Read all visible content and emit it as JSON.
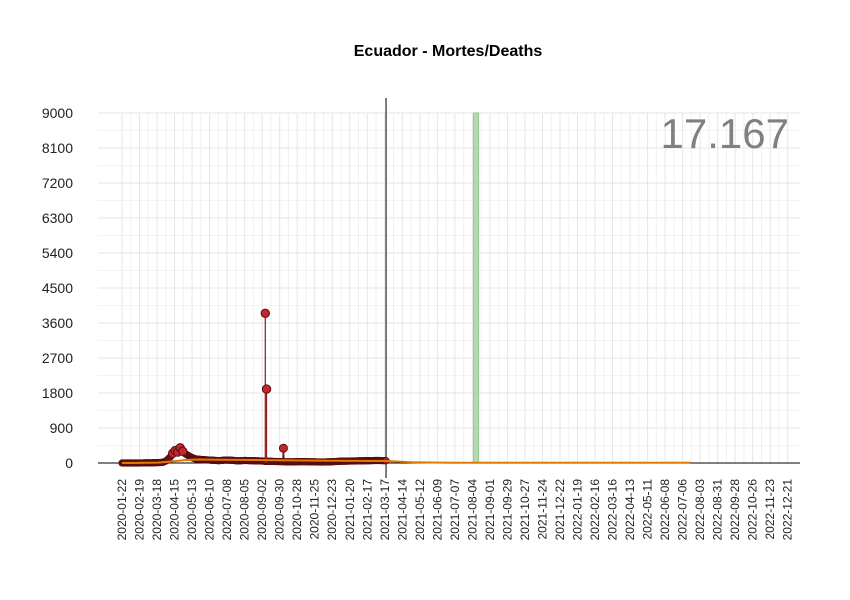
{
  "chart_data": {
    "type": "line",
    "title": "Ecuador - Mortes/Deaths",
    "total_label": "17.167",
    "x_start": "2020-01-22",
    "x_end": "2022-12-31",
    "ylim": [
      0,
      9000
    ],
    "y_ticks": [
      0,
      900,
      1800,
      2700,
      3600,
      4500,
      5400,
      6300,
      7200,
      8100,
      9000
    ],
    "x_ticks": [
      "2020-01-22",
      "2020-02-19",
      "2020-03-18",
      "2020-04-15",
      "2020-05-13",
      "2020-06-10",
      "2020-07-08",
      "2020-08-05",
      "2020-09-02",
      "2020-09-30",
      "2020-10-28",
      "2020-11-25",
      "2020-12-23",
      "2021-01-20",
      "2021-02-17",
      "2021-03-17",
      "2021-04-14",
      "2021-05-12",
      "2021-06-09",
      "2021-07-07",
      "2021-08-04",
      "2021-09-01",
      "2021-09-29",
      "2021-10-27",
      "2021-11-24",
      "2021-12-22",
      "2022-01-19",
      "2022-02-16",
      "2022-03-16",
      "2022-04-13",
      "2022-05-11",
      "2022-06-08",
      "2022-07-06",
      "2022-08-03",
      "2022-08-31",
      "2022-09-28",
      "2022-10-26",
      "2022-11-23",
      "2022-12-21"
    ],
    "grid": true,
    "vline_date": "2021-03-19",
    "highlight_band": {
      "from": "2021-08-06",
      "to": "2021-08-09"
    },
    "daily_deaths": [
      [
        "2020-01-22",
        0
      ],
      [
        "2020-02-15",
        0
      ],
      [
        "2020-03-10",
        5
      ],
      [
        "2020-03-20",
        10
      ],
      [
        "2020-03-28",
        20
      ],
      [
        "2020-04-02",
        60
      ],
      [
        "2020-04-08",
        150
      ],
      [
        "2020-04-12",
        250
      ],
      [
        "2020-04-16",
        320
      ],
      [
        "2020-04-20",
        280
      ],
      [
        "2020-04-24",
        390
      ],
      [
        "2020-04-28",
        300
      ],
      [
        "2020-05-02",
        240
      ],
      [
        "2020-05-08",
        180
      ],
      [
        "2020-05-14",
        130
      ],
      [
        "2020-05-20",
        100
      ],
      [
        "2020-05-28",
        90
      ],
      [
        "2020-06-05",
        80
      ],
      [
        "2020-06-15",
        70
      ],
      [
        "2020-06-25",
        60
      ],
      [
        "2020-07-05",
        75
      ],
      [
        "2020-07-15",
        70
      ],
      [
        "2020-07-25",
        55
      ],
      [
        "2020-08-05",
        65
      ],
      [
        "2020-08-15",
        60
      ],
      [
        "2020-08-25",
        55
      ],
      [
        "2020-09-04",
        50
      ],
      [
        "2020-09-07",
        3850
      ],
      [
        "2020-09-08",
        40
      ],
      [
        "2020-09-09",
        1900
      ],
      [
        "2020-09-10",
        45
      ],
      [
        "2020-09-20",
        40
      ],
      [
        "2020-09-30",
        35
      ],
      [
        "2020-10-05",
        35
      ],
      [
        "2020-10-06",
        380
      ],
      [
        "2020-10-07",
        30
      ],
      [
        "2020-10-20",
        30
      ],
      [
        "2020-11-05",
        35
      ],
      [
        "2020-11-20",
        30
      ],
      [
        "2020-12-05",
        25
      ],
      [
        "2020-12-20",
        30
      ],
      [
        "2021-01-05",
        45
      ],
      [
        "2021-01-20",
        50
      ],
      [
        "2021-02-05",
        55
      ],
      [
        "2021-02-20",
        60
      ],
      [
        "2021-03-05",
        65
      ],
      [
        "2021-03-19",
        60
      ]
    ],
    "series": [
      {
        "name": "",
        "color": "#8b1a1a",
        "points_until": "2021-03-19"
      },
      {
        "name": "",
        "color": "#e07b00",
        "type": "trend",
        "until": "2022-07-18"
      },
      {
        "name": "",
        "color": "#000000",
        "type": "baseline"
      }
    ],
    "trend_points": [
      [
        "2020-01-22",
        0
      ],
      [
        "2020-03-20",
        10
      ],
      [
        "2020-04-10",
        40
      ],
      [
        "2020-05-01",
        75
      ],
      [
        "2020-05-20",
        90
      ],
      [
        "2020-06-20",
        85
      ],
      [
        "2020-08-01",
        80
      ],
      [
        "2020-10-01",
        70
      ],
      [
        "2020-12-01",
        60
      ],
      [
        "2021-02-01",
        55
      ],
      [
        "2021-03-19",
        50
      ],
      [
        "2021-05-01",
        20
      ],
      [
        "2021-07-01",
        5
      ],
      [
        "2022-07-18",
        5
      ]
    ]
  }
}
